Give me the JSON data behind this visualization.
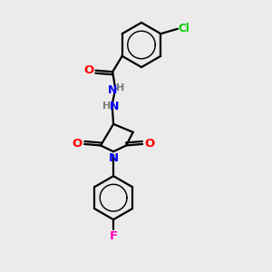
{
  "bg_color": "#ebebeb",
  "bond_color": "#000000",
  "N_color": "#0000ff",
  "O_color": "#ff0000",
  "Cl_color": "#00cc00",
  "F_color": "#ff00bb",
  "H_color": "#7a7a7a",
  "line_width": 1.6,
  "font_size": 8.5,
  "xlim": [
    0,
    10
  ],
  "ylim": [
    0,
    10
  ]
}
